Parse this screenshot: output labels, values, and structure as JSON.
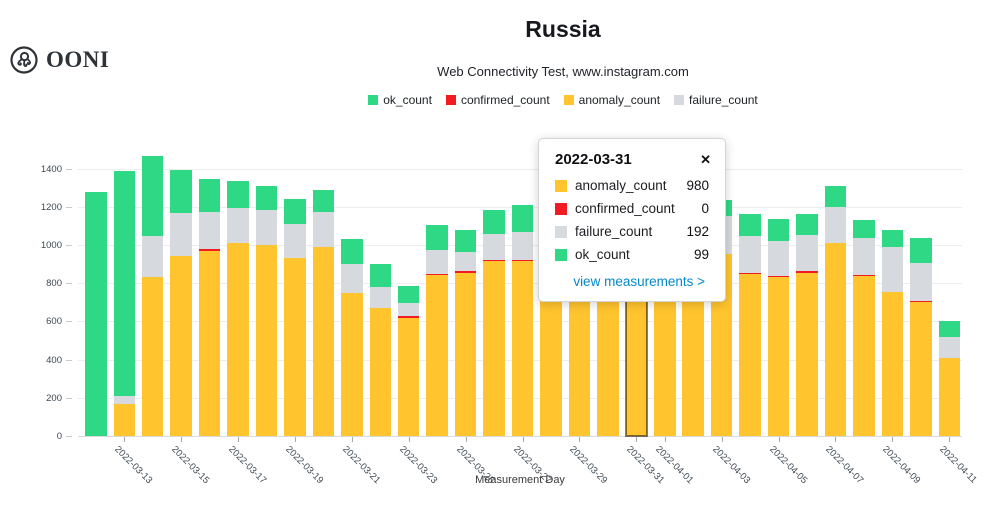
{
  "logo": {
    "text": "OONI"
  },
  "header": {
    "title": "Russia",
    "subtitle": "Web Connectivity Test, www.instagram.com"
  },
  "colors": {
    "ok": "#2FD885",
    "confirmed": "#F21B24",
    "anomaly": "#FFC42E",
    "failure": "#D6DADF",
    "link_blue": "#0588CB"
  },
  "legend": {
    "items": [
      {
        "label": "ok_count",
        "color": "#2FD885"
      },
      {
        "label": "confirmed_count",
        "color": "#F21B24"
      },
      {
        "label": "anomaly_count",
        "color": "#FFC42E"
      },
      {
        "label": "failure_count",
        "color": "#D6DADF"
      }
    ]
  },
  "chart_data": {
    "type": "bar",
    "stacked": true,
    "title": "Russia",
    "subtitle": "Web Connectivity Test, www.instagram.com",
    "xlabel": "Measurement Day",
    "ylabel": "",
    "ylim": [
      0,
      1400
    ],
    "ytick_step": 200,
    "yticks": [
      0,
      200,
      400,
      600,
      800,
      1000,
      1200,
      1400
    ],
    "grid": true,
    "legend_position": "top",
    "highlighted_category": "2022-03-31",
    "categories": [
      "2022-03-12",
      "2022-03-13",
      "2022-03-14",
      "2022-03-15",
      "2022-03-16",
      "2022-03-17",
      "2022-03-18",
      "2022-03-19",
      "2022-03-20",
      "2022-03-21",
      "2022-03-22",
      "2022-03-23",
      "2022-03-24",
      "2022-03-25",
      "2022-03-26",
      "2022-03-27",
      "2022-03-28",
      "2022-03-29",
      "2022-03-30",
      "2022-03-31",
      "2022-04-01",
      "2022-04-02",
      "2022-04-03",
      "2022-04-04",
      "2022-04-05",
      "2022-04-06",
      "2022-04-07",
      "2022-04-08",
      "2022-04-09",
      "2022-04-10",
      "2022-04-11"
    ],
    "xtick_labels": [
      "2022-03-13",
      "2022-03-15",
      "2022-03-17",
      "2022-03-19",
      "2022-03-21",
      "2022-03-23",
      "2022-03-25",
      "2022-03-27",
      "2022-03-29",
      "2022-03-31",
      "2022-04-01",
      "2022-04-03",
      "2022-04-05",
      "2022-04-07",
      "2022-04-09",
      "2022-04-11"
    ],
    "series": [
      {
        "name": "anomaly_count",
        "color": "#FFC42E",
        "values": [
          0,
          165,
          830,
          940,
          970,
          1010,
          1000,
          930,
          990,
          750,
          670,
          620,
          845,
          855,
          915,
          915,
          950,
          930,
          940,
          980,
          900,
          880,
          950,
          845,
          835,
          855,
          1010,
          835,
          755,
          700,
          410
        ]
      },
      {
        "name": "confirmed_count",
        "color": "#F21B24",
        "values": [
          0,
          0,
          0,
          0,
          10,
          0,
          0,
          0,
          0,
          0,
          0,
          10,
          5,
          7,
          8,
          8,
          0,
          0,
          0,
          0,
          0,
          0,
          0,
          8,
          5,
          7,
          0,
          5,
          0,
          5,
          0
        ]
      },
      {
        "name": "failure_count",
        "color": "#D6DADF",
        "values": [
          0,
          45,
          215,
          230,
          195,
          185,
          185,
          180,
          185,
          150,
          110,
          65,
          125,
          100,
          132,
          145,
          185,
          180,
          185,
          192,
          185,
          180,
          200,
          195,
          183,
          192,
          190,
          195,
          235,
          200,
          110
        ]
      },
      {
        "name": "ok_count",
        "color": "#2FD885",
        "values": [
          1280,
          1180,
          420,
          225,
          170,
          140,
          125,
          130,
          115,
          130,
          120,
          90,
          130,
          118,
          130,
          142,
          110,
          115,
          105,
          99,
          105,
          100,
          88,
          117,
          112,
          106,
          110,
          95,
          90,
          130,
          80
        ]
      }
    ]
  },
  "tooltip": {
    "date": "2022-03-31",
    "close_label": "✕",
    "rows": [
      {
        "label": "anomaly_count",
        "value": "980",
        "color": "#FFC42E"
      },
      {
        "label": "confirmed_count",
        "value": "0",
        "color": "#F21B24"
      },
      {
        "label": "failure_count",
        "value": "192",
        "color": "#D6DADF"
      },
      {
        "label": "ok_count",
        "value": "99",
        "color": "#2FD885"
      }
    ],
    "link_label": "view measurements >"
  },
  "axis": {
    "x_title": "Measurement Day"
  }
}
